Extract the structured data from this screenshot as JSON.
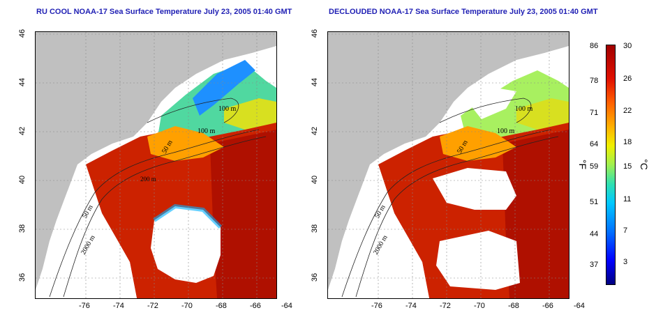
{
  "titles": {
    "left": "RU COOL NOAA-17 Sea Surface Temperature July 23, 2005 01:40 GMT",
    "right": "DECLOUDED NOAA-17 Sea Surface Temperature July 23, 2005 01:40 GMT"
  },
  "axes": {
    "x_ticks": [
      "-76",
      "-74",
      "-72",
      "-70",
      "-68",
      "-66",
      "-64"
    ],
    "y_ticks": [
      "46",
      "44",
      "42",
      "40",
      "38",
      "36"
    ]
  },
  "contour_labels": {
    "left": [
      "100 m",
      "100 m",
      "50 m",
      "200 m",
      "50 m",
      "2000 m"
    ],
    "right": [
      "100 m",
      "100 m",
      "50 m",
      "50 m",
      "2000 m"
    ]
  },
  "colorbar": {
    "fahrenheit_ticks": [
      "86",
      "78",
      "71",
      "64",
      "59",
      "51",
      "44",
      "37"
    ],
    "celsius_ticks": [
      "30",
      "26",
      "22",
      "18",
      "15",
      "11",
      "7",
      "3"
    ],
    "fahrenheit_unit": "°F",
    "celsius_unit": "°C"
  },
  "colors": {
    "title": "#1f1fb4",
    "land": "#c0c0c0",
    "warm": "#d01800",
    "cool": "#00a0ff"
  }
}
